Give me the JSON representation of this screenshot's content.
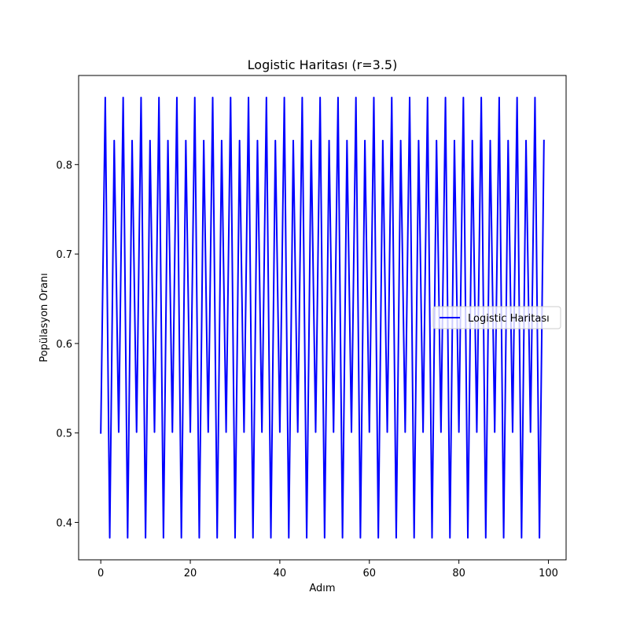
{
  "chart_data": {
    "type": "line",
    "title": "Logistic Haritası (r=3.5)",
    "xlabel": "Adım",
    "ylabel": "Popülasyon Oranı",
    "x_start": 0,
    "x_end": 99,
    "x_step": 1,
    "series": [
      {
        "name": "Logistic Haritası",
        "color": "#0000ff",
        "values": [
          0.5,
          0.875,
          0.3828,
          0.8269,
          0.5009,
          0.875,
          0.3828,
          0.8269,
          0.5009,
          0.875,
          0.3828,
          0.8269,
          0.5009,
          0.875,
          0.3828,
          0.8269,
          0.5009,
          0.875,
          0.3828,
          0.8269,
          0.5009,
          0.875,
          0.3828,
          0.8269,
          0.5009,
          0.875,
          0.3828,
          0.8269,
          0.5009,
          0.875,
          0.3828,
          0.8269,
          0.5009,
          0.875,
          0.3828,
          0.8269,
          0.5009,
          0.875,
          0.3828,
          0.8269,
          0.5009,
          0.875,
          0.3828,
          0.8269,
          0.5009,
          0.875,
          0.3828,
          0.8269,
          0.5009,
          0.875,
          0.3828,
          0.8269,
          0.5009,
          0.875,
          0.3828,
          0.8269,
          0.5009,
          0.875,
          0.3828,
          0.8269,
          0.5009,
          0.875,
          0.3828,
          0.8269,
          0.5009,
          0.875,
          0.3828,
          0.8269,
          0.5009,
          0.875,
          0.3828,
          0.8269,
          0.5009,
          0.875,
          0.3828,
          0.8269,
          0.5009,
          0.875,
          0.3828,
          0.8269,
          0.5009,
          0.875,
          0.3828,
          0.8269,
          0.5009,
          0.875,
          0.3828,
          0.8269,
          0.5009,
          0.875,
          0.3828,
          0.8269,
          0.5009,
          0.875,
          0.3828,
          0.8269,
          0.5009,
          0.875,
          0.3828,
          0.8269
        ]
      }
    ],
    "xlim": [
      -4.95,
      103.95
    ],
    "ylim": [
      0.3582,
      0.8996
    ],
    "xticks": [
      0,
      20,
      40,
      60,
      80,
      100
    ],
    "xtick_labels": [
      "0",
      "20",
      "40",
      "60",
      "80",
      "100"
    ],
    "yticks": [
      0.4,
      0.5,
      0.6,
      0.7,
      0.8
    ],
    "ytick_labels": [
      "0.4",
      "0.5",
      "0.6",
      "0.7",
      "0.8"
    ],
    "grid": false,
    "legend_position": "center-right"
  }
}
